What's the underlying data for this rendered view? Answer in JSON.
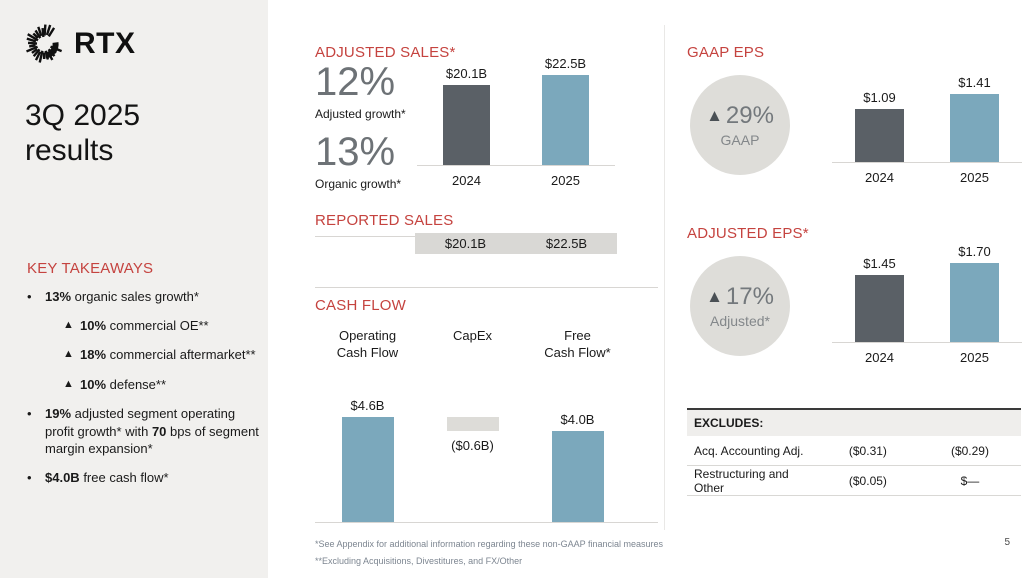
{
  "header": {
    "logo_text": "RTX",
    "title": "3Q 2025 results"
  },
  "takeaways": {
    "heading": "KEY TAKEAWAYS",
    "items": [
      {
        "level": 1,
        "marker": "•",
        "segments": [
          {
            "text": "13%",
            "bold": true
          },
          {
            "text": " organic sales growth*",
            "bold": false
          }
        ]
      },
      {
        "level": 2,
        "marker": "▲",
        "segments": [
          {
            "text": "10%",
            "bold": true
          },
          {
            "text": " commercial OE**",
            "bold": false
          }
        ]
      },
      {
        "level": 2,
        "marker": "▲",
        "segments": [
          {
            "text": "18%",
            "bold": true
          },
          {
            "text": " commercial aftermarket**",
            "bold": false
          }
        ]
      },
      {
        "level": 2,
        "marker": "▲",
        "segments": [
          {
            "text": "10%",
            "bold": true
          },
          {
            "text": " defense**",
            "bold": false
          }
        ]
      },
      {
        "level": 1,
        "marker": "•",
        "segments": [
          {
            "text": "19%",
            "bold": true
          },
          {
            "text": " adjusted segment operating profit growth* with ",
            "bold": false
          },
          {
            "text": "70",
            "bold": true
          },
          {
            "text": " bps of segment margin expansion*",
            "bold": false
          }
        ]
      },
      {
        "level": 1,
        "marker": "•",
        "segments": [
          {
            "text": "$4.0B",
            "bold": true
          },
          {
            "text": " free cash flow*",
            "bold": false
          }
        ]
      }
    ]
  },
  "chart_data": [
    {
      "id": "adjusted-sales",
      "type": "bar",
      "title": "ADJUSTED SALES*",
      "categories": [
        "2024",
        "2025"
      ],
      "values": [
        20.1,
        22.5
      ],
      "value_labels": [
        "$20.1B",
        "$22.5B"
      ],
      "unit": "USD billions",
      "ylim": [
        0,
        22.5
      ],
      "stats": [
        {
          "value": "12%",
          "label": "Adjusted growth*"
        },
        {
          "value": "13%",
          "label": "Organic growth*"
        }
      ]
    },
    {
      "id": "reported-sales",
      "type": "table",
      "title": "REPORTED SALES",
      "categories": [
        "2024",
        "2025"
      ],
      "values": [
        20.1,
        22.5
      ],
      "value_labels": [
        "$20.1B",
        "$22.5B"
      ],
      "unit": "USD billions"
    },
    {
      "id": "cash-flow",
      "type": "bar",
      "title": "CASH FLOW",
      "categories": [
        "Operating\nCash Flow",
        "CapEx",
        "Free\nCash Flow*"
      ],
      "values": [
        4.6,
        -0.6,
        4.0
      ],
      "value_labels": [
        "$4.6B",
        "($0.6B)",
        "$4.0B"
      ],
      "unit": "USD billions",
      "ylim": [
        0,
        4.6
      ]
    },
    {
      "id": "gaap-eps",
      "type": "bar",
      "title": "GAAP EPS",
      "badge": {
        "arrow": "▲",
        "pct": "29%",
        "label": "GAAP"
      },
      "categories": [
        "2024",
        "2025"
      ],
      "values": [
        1.09,
        1.41
      ],
      "value_labels": [
        "$1.09",
        "$1.41"
      ],
      "unit": "USD per share",
      "ylim": [
        0,
        1.41
      ]
    },
    {
      "id": "adjusted-eps",
      "type": "bar",
      "title": "ADJUSTED EPS*",
      "badge": {
        "arrow": "▲",
        "pct": "17%",
        "label": "Adjusted*"
      },
      "categories": [
        "2024",
        "2025"
      ],
      "values": [
        1.45,
        1.7
      ],
      "value_labels": [
        "$1.45",
        "$1.70"
      ],
      "unit": "USD per share",
      "ylim": [
        0,
        1.7
      ]
    }
  ],
  "excludes": {
    "header": "EXCLUDES:",
    "rows": [
      {
        "label": "Acq. Accounting Adj.",
        "values": [
          "($0.31)",
          "($0.29)"
        ]
      },
      {
        "label": "Restructuring and Other",
        "values": [
          "($0.05)",
          "$—"
        ]
      }
    ]
  },
  "footer": {
    "notes": [
      "*See Appendix for additional information regarding these non-GAAP financial measures",
      "**Excluding Acquisitions, Divestitures, and FX/Other"
    ],
    "page_number": "5"
  },
  "colors": {
    "accent_red": "#C5433F",
    "bar_dark": "#5A6066",
    "bar_blue": "#7BA8BC",
    "capex_gray": "#DDDCD8",
    "circle_gray": "#DEDDD9",
    "band_gray": "#D9D8D5",
    "sidebar_bg": "#F1F0EE"
  }
}
